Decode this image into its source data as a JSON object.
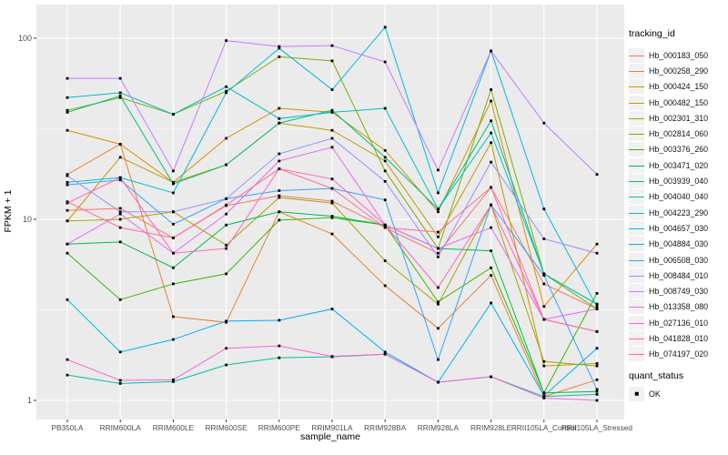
{
  "figure": {
    "background": "#FFFFFF",
    "panel_bg": "#EBEBEB",
    "grid_major_color": "#FFFFFF",
    "grid_minor_color": "#F7F7F7",
    "tick_label_color": "#4D4D4D",
    "tick_mark_color": "#333333",
    "point_color": "#000000"
  },
  "legend": {
    "tracking_title": "tracking_id",
    "quant_title": "quant_status",
    "quant_items": [
      {
        "label": "OK",
        "shape": "black-square"
      }
    ]
  },
  "chart_data": {
    "type": "line",
    "title": "",
    "xlabel": "sample_name",
    "ylabel": "FPKM + 1",
    "y_scale": "log10",
    "y_ticks": [
      1,
      10,
      100
    ],
    "y_tick_labels": [
      "1",
      "10",
      "100"
    ],
    "ylim": [
      1,
      155
    ],
    "grid": true,
    "legend_position": "right",
    "point_marker": "black square (quant_status = OK)",
    "categories": [
      "PB350LA",
      "RRIM600LA",
      "RRIM600LE",
      "RRIM600SE",
      "RRIM600PE",
      "RRIM901LA",
      "RRIM928BA",
      "RRIM928LA",
      "RRIM928LE",
      "RRII105LA_Control",
      "RRII105LA_Stressed"
    ],
    "series": [
      {
        "name": "Hb_000183_050",
        "color": "#F8766D",
        "values": [
          11.2,
          11.5,
          7.9,
          11.9,
          13.5,
          12.6,
          9.0,
          6.5,
          15.0,
          4.4,
          3.2
        ]
      },
      {
        "name": "Hb_000258_290",
        "color": "#EA8331",
        "values": [
          17.7,
          26.0,
          2.9,
          2.7,
          11.0,
          8.3,
          4.3,
          2.5,
          4.9,
          1.05,
          1.3
        ]
      },
      {
        "name": "Hb_000424_150",
        "color": "#D89000",
        "values": [
          31,
          26,
          16,
          28,
          41,
          39,
          24,
          11,
          45,
          3.3,
          7.3
        ]
      },
      {
        "name": "Hb_000482_150",
        "color": "#C09B00",
        "values": [
          9.8,
          22,
          16,
          20,
          34,
          31,
          21,
          8.0,
          26.5,
          1.55,
          1.6
        ]
      },
      {
        "name": "Hb_002301_310",
        "color": "#A3A500",
        "values": [
          9.8,
          10,
          11,
          7.2,
          13.2,
          12.3,
          5.9,
          3.4,
          12,
          1.64,
          1.55
        ]
      },
      {
        "name": "Hb_002814_060",
        "color": "#7CAE00",
        "values": [
          40,
          47,
          38,
          51,
          79,
          75,
          18.5,
          6.9,
          52,
          5.0,
          3.2
        ]
      },
      {
        "name": "Hb_003376_260",
        "color": "#39B600",
        "values": [
          6.5,
          3.6,
          4.4,
          5.0,
          9.9,
          10.2,
          9.3,
          3.5,
          5.4,
          1.1,
          3.9
        ]
      },
      {
        "name": "Hb_003471_020",
        "color": "#00BB4E",
        "values": [
          7.3,
          7.5,
          5.4,
          9.3,
          11,
          10.4,
          9.3,
          6.9,
          6.7,
          1.1,
          1.12
        ]
      },
      {
        "name": "Hb_003939_040",
        "color": "#00BF7D",
        "values": [
          39,
          48,
          15.7,
          20,
          34,
          40,
          22,
          11.4,
          35,
          5.0,
          3.4
        ]
      },
      {
        "name": "Hb_004040_040",
        "color": "#00C1A3",
        "values": [
          1.38,
          1.24,
          1.27,
          1.57,
          1.72,
          1.74,
          1.8,
          1.26,
          1.35,
          1.05,
          1.08
        ]
      },
      {
        "name": "Hb_004223_290",
        "color": "#00BFC4",
        "values": [
          47,
          50,
          38,
          54,
          36,
          39,
          41,
          11.4,
          30,
          5.0,
          3.4
        ]
      },
      {
        "name": "Hb_004657_030",
        "color": "#00BAE0",
        "values": [
          16,
          17,
          14,
          50,
          88,
          52,
          115,
          14,
          85,
          11.4,
          3.3
        ]
      },
      {
        "name": "Hb_004884_030",
        "color": "#00B0F6",
        "values": [
          3.6,
          1.85,
          2.17,
          2.74,
          2.77,
          3.2,
          1.85,
          1.26,
          3.45,
          1.06,
          1.94
        ]
      },
      {
        "name": "Hb_006508_030",
        "color": "#35A2FF",
        "values": [
          15.5,
          16.5,
          9.4,
          13,
          14.4,
          14.8,
          12.8,
          1.68,
          12,
          4.9,
          1.15
        ]
      },
      {
        "name": "Hb_008484_010",
        "color": "#9590FF",
        "values": [
          17.4,
          11,
          11,
          13,
          23,
          28,
          16.2,
          6.2,
          20.7,
          7.8,
          6.5
        ]
      },
      {
        "name": "Hb_008749_030",
        "color": "#C77CFF",
        "values": [
          60,
          60,
          18.5,
          97,
          90,
          91,
          74,
          18.7,
          85,
          34,
          17.7
        ]
      },
      {
        "name": "Hb_013358_080",
        "color": "#E76BF3",
        "values": [
          7.3,
          10.7,
          6.5,
          10.7,
          21,
          25,
          9.3,
          6.9,
          9.0,
          2.8,
          3.2
        ]
      },
      {
        "name": "Hb_027136_010",
        "color": "#FA62DB",
        "values": [
          1.68,
          1.29,
          1.3,
          1.94,
          2.0,
          1.75,
          1.8,
          1.26,
          1.35,
          1.03,
          1.0
        ]
      },
      {
        "name": "Hb_041828_010",
        "color": "#FF62BC",
        "values": [
          12.3,
          17,
          6.5,
          6.9,
          19,
          16.7,
          9.3,
          4.2,
          12,
          2.8,
          2.4
        ]
      },
      {
        "name": "Hb_074197_020",
        "color": "#FF6A98",
        "values": [
          12.5,
          9.0,
          7.9,
          12,
          19,
          14.8,
          9.0,
          8.5,
          15,
          2.8,
          2.4
        ]
      }
    ]
  }
}
